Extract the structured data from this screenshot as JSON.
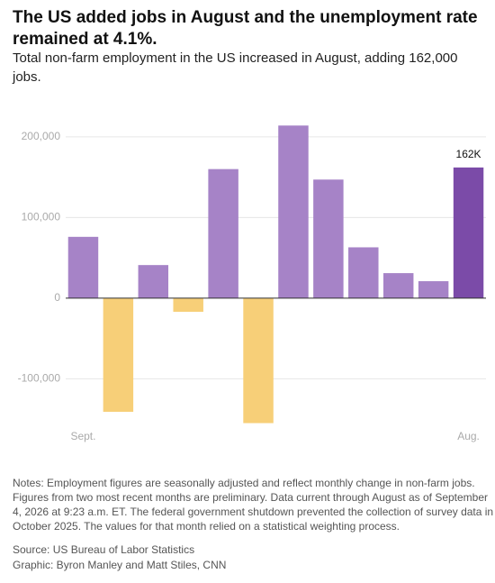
{
  "chart_data": {
    "type": "bar",
    "title": "The US added jobs in August and the unemployment rate remained at 4.1%.",
    "subtitle": "Total non-farm employment in the US increased in August, adding 162,000 jobs.",
    "categories": [
      "Sept.",
      null,
      null,
      null,
      null,
      null,
      null,
      null,
      null,
      null,
      null,
      "Aug."
    ],
    "values": [
      76000,
      -141000,
      41000,
      -17000,
      160000,
      -155000,
      214000,
      147000,
      63000,
      31000,
      21000,
      162000
    ],
    "value_labels": [
      null,
      null,
      null,
      null,
      null,
      null,
      null,
      null,
      null,
      null,
      null,
      "162K"
    ],
    "colors": [
      "#a683c7",
      "#f7cf78",
      "#a683c7",
      "#f7cf78",
      "#a683c7",
      "#f7cf78",
      "#a683c7",
      "#a683c7",
      "#a683c7",
      "#a683c7",
      "#a683c7",
      "#7b4ba8"
    ],
    "ylim": [
      -170000,
      230000
    ],
    "yticks": [
      {
        "value": -100000,
        "label": "-100,000"
      },
      0,
      {
        "value": 100000,
        "label": "100,000"
      },
      {
        "value": 200000,
        "label": "200,000"
      }
    ],
    "grid": true,
    "notes": "Notes: Employment figures are seasonally adjusted and reflect monthly change in non-farm jobs. Figures from two most recent months are preliminary. Data current through August as of September 4, 2026 at 9:23 a.m. ET. The federal government shutdown prevented the collection of survey data in October 2025. The values for that month relied on a statistical weighting process.",
    "source": "Source: US Bureau of Labor Statistics",
    "credit": "Graphic: Byron Manley and Matt Stiles, CNN"
  }
}
